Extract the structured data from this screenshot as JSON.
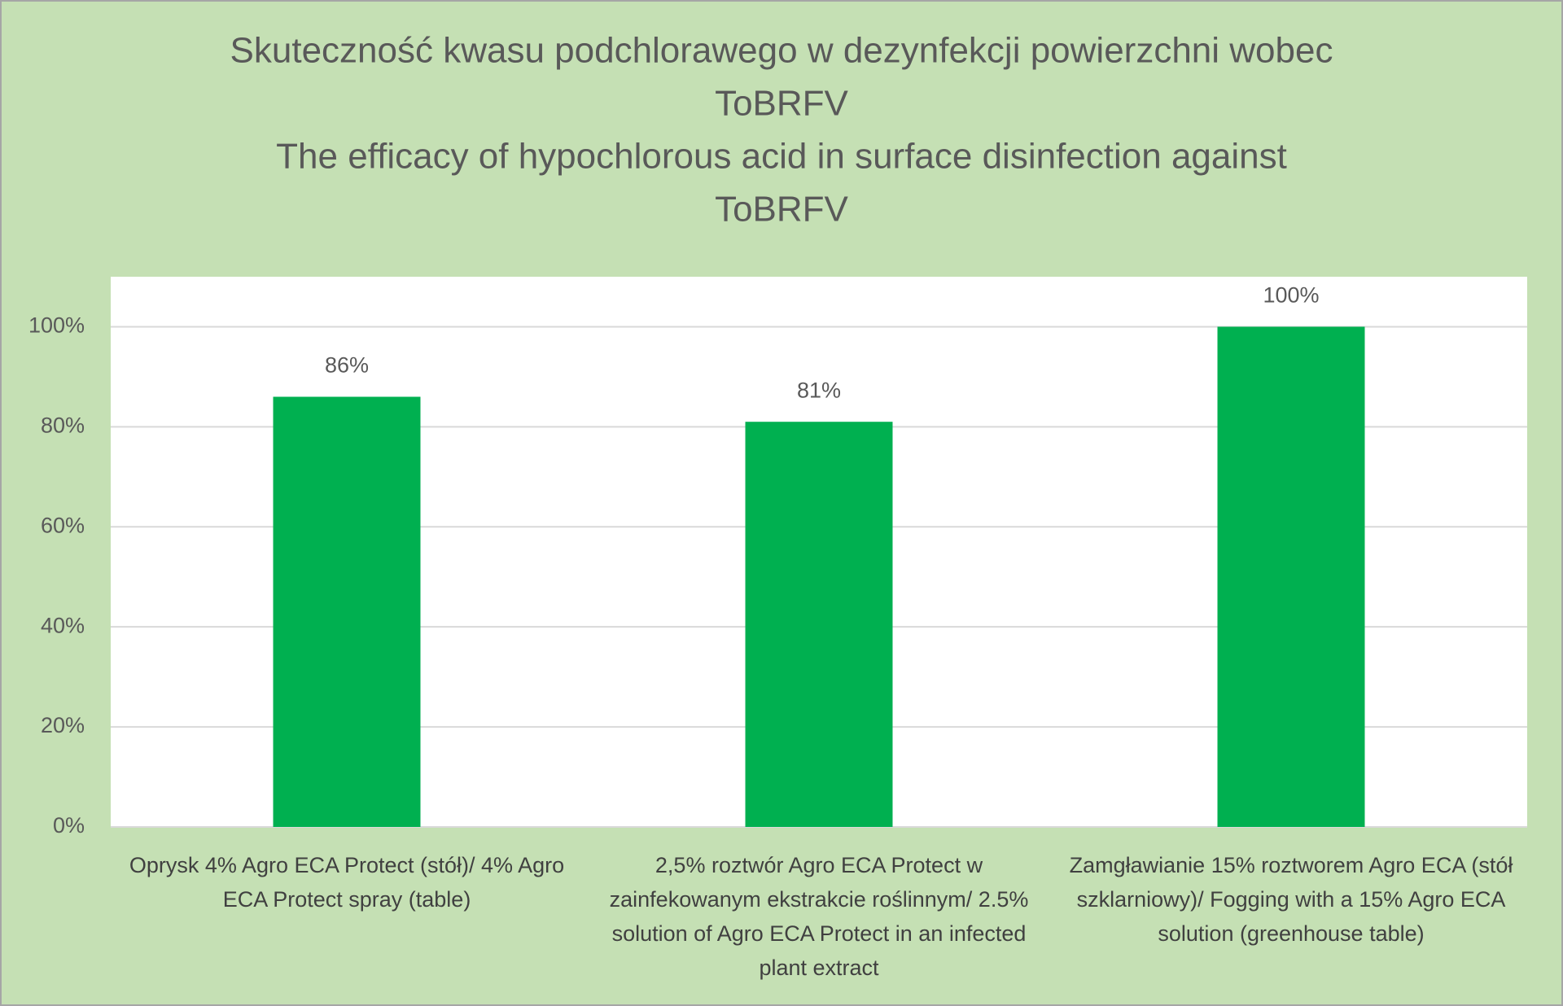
{
  "chart_data": {
    "type": "bar",
    "title": [
      "Skuteczność kwasu podchlorawego w dezynfekcji powierzchni wobec",
      "ToBRFV",
      "The efficacy of hypochlorous acid in surface disinfection against",
      "ToBRFV"
    ],
    "categories": [
      "Oprysk 4% Agro ECA Protect (stół)/ 4% Agro ECA Protect spray (table)",
      "2,5% roztwór Agro ECA Protect w zainfekowanym ekstrakcie roślinnym/ 2.5% solution of Agro ECA Protect in an infected plant extract",
      "Zamgławianie 15% roztworem Agro ECA (stół szklarniowy)/ Fogging with a 15% Agro ECA solution (greenhouse table)"
    ],
    "values": [
      86,
      81,
      100
    ],
    "value_labels": [
      "86%",
      "81%",
      "100%"
    ],
    "color": "#00b050",
    "ylim": [
      0,
      110
    ],
    "yticks": [
      {
        "value": 0,
        "label": "0%"
      },
      {
        "value": 20,
        "label": "20%"
      },
      {
        "value": 40,
        "label": "40%"
      },
      {
        "value": 60,
        "label": "60%"
      },
      {
        "value": 80,
        "label": "80%"
      },
      {
        "value": 100,
        "label": "100%"
      }
    ],
    "grid": true
  }
}
